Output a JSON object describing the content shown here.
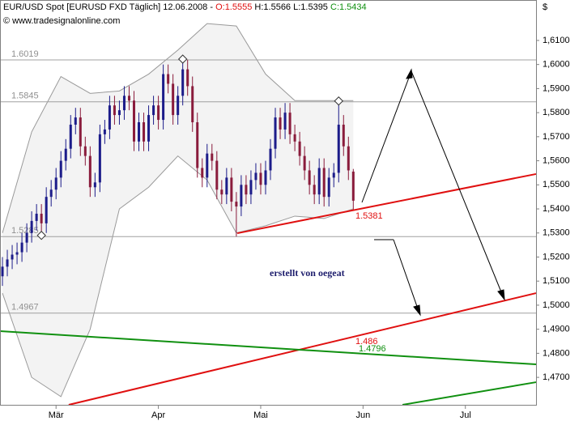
{
  "chart_data": {
    "type": "candlestick",
    "header": {
      "instrument": "EUR/USD Spot [EURUSD FXD  Täglich] 12.06.2008 - ",
      "open": "O:1.5555",
      "highlow": "H:1.5566 L:1.5395",
      "close": "C:1.5434",
      "source": "© www.tradesignalonline.com",
      "currency": "$"
    },
    "up_color": "#1c1c8a",
    "down_color": "#8a1c3c",
    "open": [
      1.512,
      1.516,
      1.519,
      1.521,
      1.522,
      1.526,
      1.53,
      1.535,
      1.538,
      1.534,
      1.545,
      1.548,
      1.553,
      1.56,
      1.565,
      1.575,
      1.578,
      1.566,
      1.562,
      1.549,
      1.551,
      1.571,
      1.573,
      1.583,
      1.579,
      1.581,
      1.587,
      1.585,
      1.568,
      1.576,
      1.568,
      1.579,
      1.583,
      1.577,
      1.596,
      1.592,
      1.579,
      1.587,
      1.598,
      1.591,
      1.576,
      1.557,
      1.553,
      1.563,
      1.56,
      1.548,
      1.546,
      1.553,
      1.543,
      1.541,
      1.55,
      1.546,
      1.552,
      1.555,
      1.55,
      1.556,
      1.565,
      1.578,
      1.573,
      1.58,
      1.571,
      1.568,
      1.562,
      1.556,
      1.55,
      1.546,
      1.557,
      1.545,
      1.553,
      1.555,
      1.575,
      1.566,
      1.5555
    ],
    "high": [
      1.52,
      1.523,
      1.525,
      1.526,
      1.53,
      1.534,
      1.539,
      1.542,
      1.542,
      1.549,
      1.552,
      1.557,
      1.564,
      1.569,
      1.579,
      1.582,
      1.582,
      1.57,
      1.566,
      1.555,
      1.575,
      1.577,
      1.587,
      1.587,
      1.585,
      1.591,
      1.591,
      1.589,
      1.58,
      1.58,
      1.583,
      1.587,
      1.587,
      1.6,
      1.6,
      1.596,
      1.591,
      1.6019,
      1.602,
      1.595,
      1.58,
      1.561,
      1.567,
      1.567,
      1.564,
      1.552,
      1.557,
      1.557,
      1.547,
      1.554,
      1.554,
      1.556,
      1.559,
      1.559,
      1.56,
      1.569,
      1.582,
      1.582,
      1.584,
      1.584,
      1.575,
      1.572,
      1.566,
      1.56,
      1.554,
      1.561,
      1.561,
      1.557,
      1.559,
      1.5845,
      1.579,
      1.57,
      1.5566
    ],
    "low": [
      1.508,
      1.512,
      1.515,
      1.517,
      1.518,
      1.522,
      1.526,
      1.531,
      1.529,
      1.53,
      1.541,
      1.544,
      1.549,
      1.556,
      1.561,
      1.571,
      1.562,
      1.558,
      1.545,
      1.545,
      1.547,
      1.567,
      1.569,
      1.575,
      1.575,
      1.577,
      1.581,
      1.564,
      1.564,
      1.564,
      1.564,
      1.575,
      1.573,
      1.573,
      1.588,
      1.575,
      1.575,
      1.583,
      1.587,
      1.572,
      1.553,
      1.549,
      1.549,
      1.556,
      1.544,
      1.542,
      1.542,
      1.539,
      1.5285,
      1.537,
      1.542,
      1.542,
      1.548,
      1.546,
      1.546,
      1.552,
      1.561,
      1.569,
      1.569,
      1.567,
      1.564,
      1.558,
      1.552,
      1.546,
      1.542,
      1.542,
      1.541,
      1.541,
      1.549,
      1.551,
      1.562,
      1.552,
      1.5395
    ],
    "close": [
      1.516,
      1.519,
      1.521,
      1.522,
      1.526,
      1.53,
      1.535,
      1.538,
      1.534,
      1.545,
      1.548,
      1.553,
      1.56,
      1.565,
      1.575,
      1.578,
      1.566,
      1.562,
      1.549,
      1.551,
      1.571,
      1.573,
      1.583,
      1.579,
      1.581,
      1.587,
      1.585,
      1.568,
      1.576,
      1.568,
      1.579,
      1.583,
      1.577,
      1.596,
      1.592,
      1.579,
      1.587,
      1.598,
      1.591,
      1.576,
      1.557,
      1.553,
      1.563,
      1.56,
      1.548,
      1.546,
      1.553,
      1.543,
      1.541,
      1.55,
      1.546,
      1.552,
      1.555,
      1.55,
      1.556,
      1.565,
      1.578,
      1.573,
      1.58,
      1.571,
      1.568,
      1.562,
      1.556,
      1.55,
      1.546,
      1.557,
      1.545,
      1.553,
      1.555,
      1.575,
      1.566,
      1.556,
      1.5434
    ],
    "band": {
      "color": "#999999",
      "x": [
        0,
        6,
        12,
        18,
        24,
        30,
        36,
        42,
        48,
        54,
        60,
        66,
        72
      ],
      "upper": [
        1.53,
        1.572,
        1.595,
        1.588,
        1.589,
        1.596,
        1.606,
        1.617,
        1.616,
        1.596,
        1.585,
        1.585,
        1.585
      ],
      "lower": [
        1.505,
        1.47,
        1.462,
        1.49,
        1.54,
        1.549,
        1.562,
        1.552,
        1.53,
        1.533,
        1.537,
        1.536,
        1.54
      ]
    },
    "levels": [
      1.6019,
      1.5845,
      1.5285,
      1.4967
    ],
    "trendlines": [
      {
        "color": "#e01010",
        "x": [
          48.2,
          109.5
        ],
        "y": [
          1.5299,
          1.5545
        ]
      },
      {
        "color": "#e01010",
        "x": [
          13.6,
          109.5
        ],
        "y": [
          1.4586,
          1.505
        ]
      },
      {
        "color": "#109010",
        "x": [
          -0.5,
          109.5
        ],
        "y": [
          1.4892,
          1.4754
        ]
      },
      {
        "color": "#109010",
        "x": [
          82.1,
          109.5
        ],
        "y": [
          1.4586,
          1.468
        ]
      }
    ],
    "markers": [
      {
        "x": 37,
        "value": 1.6019
      },
      {
        "x": 69,
        "value": 1.5845
      },
      {
        "x": 8,
        "value": 1.529
      }
    ],
    "annotations": [
      "1.5381",
      "1.486",
      "1.4796",
      "erstellt von oegeat"
    ],
    "xlim": [
      -0.5,
      109.5
    ],
    "xticks": [
      {
        "value": 11,
        "label": "Mär"
      },
      {
        "value": 32,
        "label": "Apr"
      },
      {
        "value": 53,
        "label": "Mai"
      },
      {
        "value": 74,
        "label": "Jun"
      },
      {
        "value": 95,
        "label": "Jul"
      }
    ],
    "ylim": [
      1.4586,
      1.6268
    ],
    "yticks": [
      {
        "value": 1.47,
        "label": "1,4700"
      },
      {
        "value": 1.48,
        "label": "1,4800"
      },
      {
        "value": 1.49,
        "label": "1,4900"
      },
      {
        "value": 1.5,
        "label": "1,5000"
      },
      {
        "value": 1.51,
        "label": "1,5100"
      },
      {
        "value": 1.52,
        "label": "1,5200"
      },
      {
        "value": 1.53,
        "label": "1,5300"
      },
      {
        "value": 1.54,
        "label": "1,5400"
      },
      {
        "value": 1.55,
        "label": "1,5500"
      },
      {
        "value": 1.56,
        "label": "1,5600"
      },
      {
        "value": 1.57,
        "label": "1,5700"
      },
      {
        "value": 1.58,
        "label": "1,5800"
      },
      {
        "value": 1.59,
        "label": "1,5900"
      },
      {
        "value": 1.6,
        "label": "1,6000"
      },
      {
        "value": 1.61,
        "label": "1,6100"
      }
    ]
  }
}
